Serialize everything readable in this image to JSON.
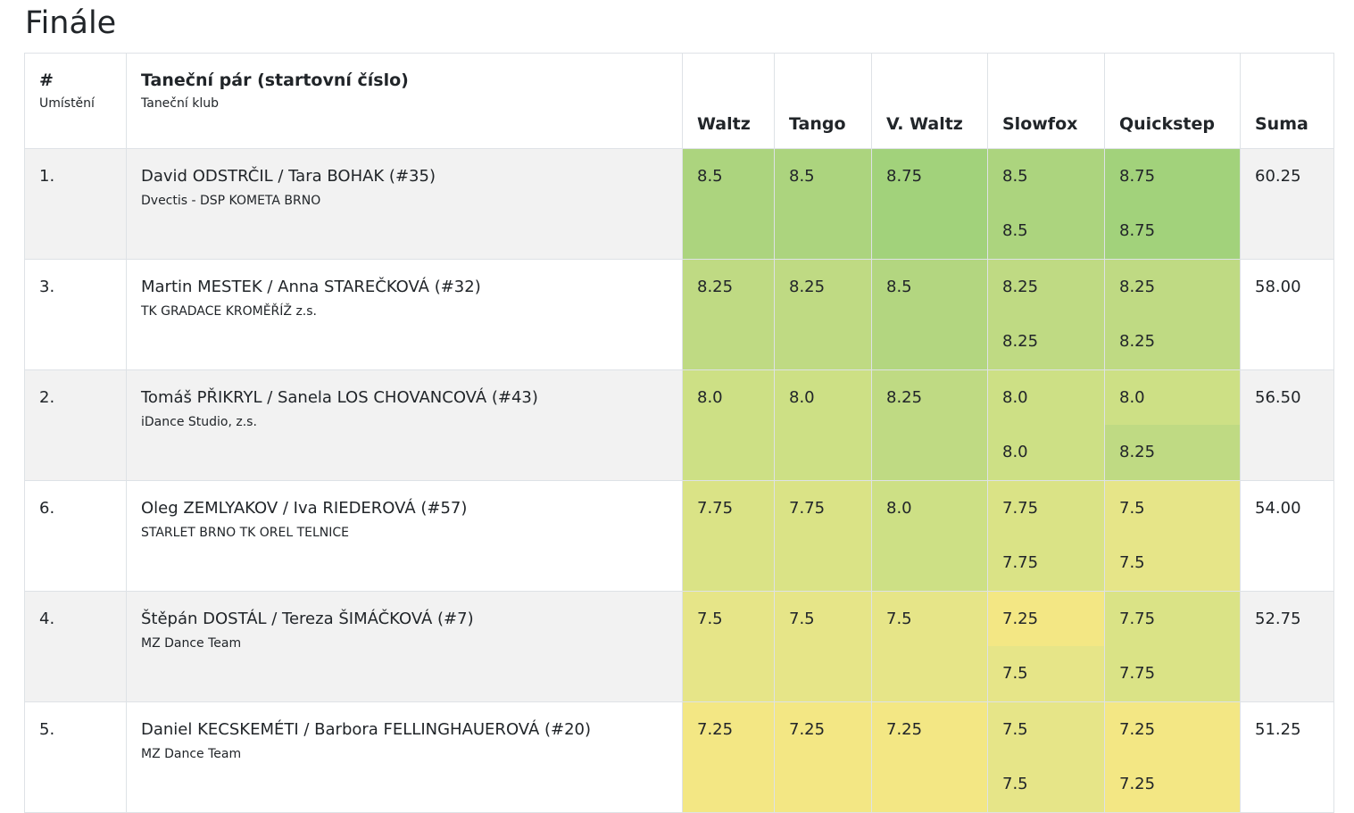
{
  "page": {
    "title": "Finále"
  },
  "table": {
    "headers": {
      "place": "#",
      "place_sub": "Umístění",
      "pair": "Taneční pár (startovní číslo)",
      "pair_sub": "Taneční klub",
      "waltz": "Waltz",
      "tango": "Tango",
      "vwaltz": "V. Waltz",
      "slowfox": "Slowfox",
      "quickstep": "Quickstep",
      "sum": "Suma"
    },
    "rows": [
      {
        "place": "1.",
        "pair": "David ODSTRČIL / Tara BOHAK (#35)",
        "club": "Dvectis - DSP KOMETA BRNO",
        "waltz": "8.5",
        "tango": "8.5",
        "vwaltz": "8.75",
        "slowfox_a": "8.5",
        "slowfox_b": "8.5",
        "quickstep_a": "8.75",
        "quickstep_b": "8.75",
        "sum": "60.25",
        "colors": {
          "waltz": "#acd47e",
          "tango": "#acd47e",
          "vwaltz": "#a2d27b",
          "slowfox_a": "#acd47e",
          "slowfox_b": "#acd47e",
          "quickstep_a": "#a2d27b",
          "quickstep_b": "#a2d27b"
        }
      },
      {
        "place": "3.",
        "pair": "Martin MESTEK / Anna STAREČKOVÁ (#32)",
        "club": "TK GRADACE KROMĚŘÍŽ z.s.",
        "waltz": "8.25",
        "tango": "8.25",
        "vwaltz": "8.5",
        "slowfox_a": "8.25",
        "slowfox_b": "8.25",
        "quickstep_a": "8.25",
        "quickstep_b": "8.25",
        "sum": "58.00",
        "colors": {
          "waltz": "#bfda83",
          "tango": "#bfda83",
          "vwaltz": "#b3d680",
          "slowfox_a": "#bfda83",
          "slowfox_b": "#bfda83",
          "quickstep_a": "#bfda83",
          "quickstep_b": "#bfda83"
        }
      },
      {
        "place": "2.",
        "pair": "Tomáš PŘIKRYL / Sanela LOS CHOVANCOVÁ (#43)",
        "club": "iDance Studio, z.s.",
        "waltz": "8.0",
        "tango": "8.0",
        "vwaltz": "8.25",
        "slowfox_a": "8.0",
        "slowfox_b": "8.0",
        "quickstep_a": "8.0",
        "quickstep_b": "8.25",
        "sum": "56.50",
        "colors": {
          "waltz": "#cde085",
          "tango": "#cde085",
          "vwaltz": "#bfda83",
          "slowfox_a": "#cde085",
          "slowfox_b": "#cde085",
          "quickstep_a": "#cde085",
          "quickstep_b": "#bfda83"
        }
      },
      {
        "place": "6.",
        "pair": "Oleg ZEMLYAKOV / Iva RIEDEROVÁ (#57)",
        "club": "STARLET BRNO TK OREL TELNICE",
        "waltz": "7.75",
        "tango": "7.75",
        "vwaltz": "8.0",
        "slowfox_a": "7.75",
        "slowfox_b": "7.75",
        "quickstep_a": "7.5",
        "quickstep_b": "7.5",
        "sum": "54.00",
        "colors": {
          "waltz": "#dae386",
          "tango": "#dae386",
          "vwaltz": "#cde085",
          "slowfox_a": "#dae386",
          "slowfox_b": "#dae386",
          "quickstep_a": "#e6e588",
          "quickstep_b": "#e6e588"
        }
      },
      {
        "place": "4.",
        "pair": "Štěpán DOSTÁL / Tereza ŠIMÁČKOVÁ (#7)",
        "club": "MZ Dance Team",
        "waltz": "7.5",
        "tango": "7.5",
        "vwaltz": "7.5",
        "slowfox_a": "7.25",
        "slowfox_b": "7.5",
        "quickstep_a": "7.75",
        "quickstep_b": "7.75",
        "sum": "52.75",
        "colors": {
          "waltz": "#e6e588",
          "tango": "#e6e588",
          "vwaltz": "#e6e588",
          "slowfox_a": "#f3e784",
          "slowfox_b": "#e6e588",
          "quickstep_a": "#dae386",
          "quickstep_b": "#dae386"
        }
      },
      {
        "place": "5.",
        "pair": "Daniel KECSKEMÉTI / Barbora FELLINGHAUEROVÁ (#20)",
        "club": "MZ Dance Team",
        "waltz": "7.25",
        "tango": "7.25",
        "vwaltz": "7.25",
        "slowfox_a": "7.5",
        "slowfox_b": "7.5",
        "quickstep_a": "7.25",
        "quickstep_b": "7.25",
        "sum": "51.25",
        "colors": {
          "waltz": "#f3e784",
          "tango": "#f3e784",
          "vwaltz": "#f3e784",
          "slowfox_a": "#e6e588",
          "slowfox_b": "#e6e588",
          "quickstep_a": "#f3e784",
          "quickstep_b": "#f3e784"
        }
      }
    ]
  }
}
